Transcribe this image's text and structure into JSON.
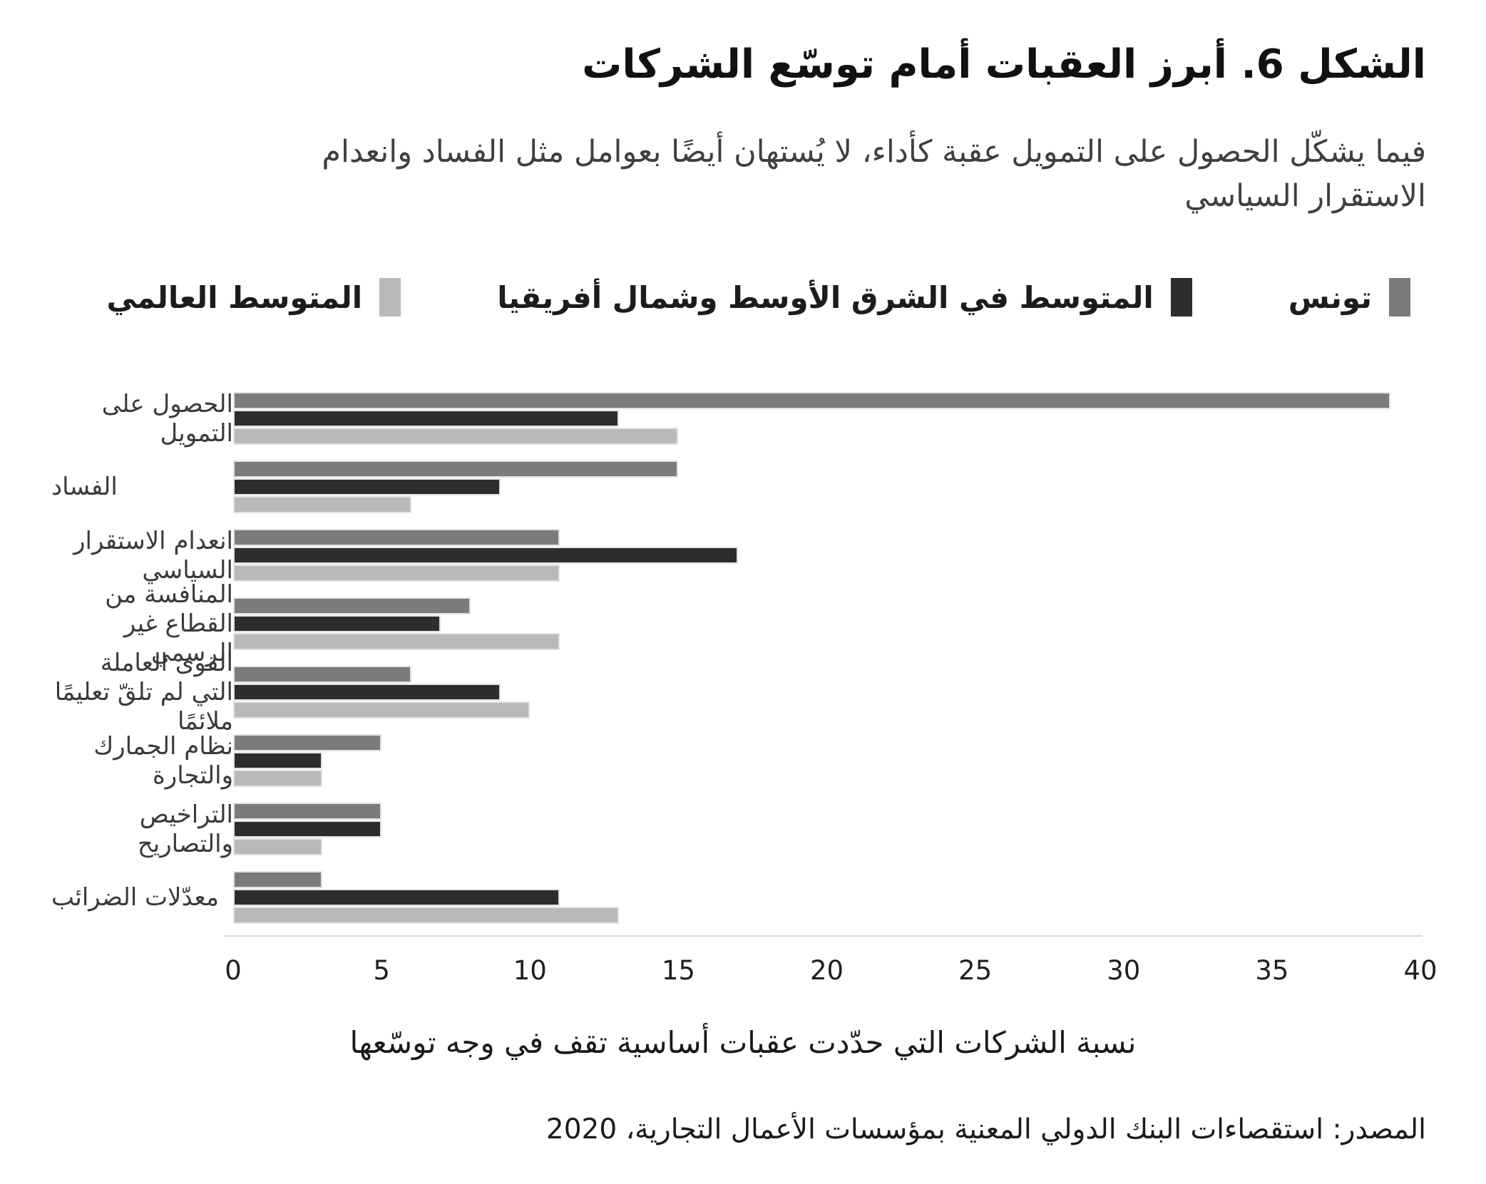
{
  "figure": {
    "title": "الشكل 6. أبرز العقبات أمام توسّع الشركات",
    "subtitle": "فيما يشكّل الحصول على التمويل عقبة كأداء، لا يُستهان أيضًا بعوامل مثل الفساد وانعدام الاستقرار السياسي",
    "xaxis_label": "نسبة الشركات التي حدّدت عقبات أساسية تقف في وجه توسّعها",
    "source": "المصدر: استقصاءات البنك الدولي المعنية بمؤسسات الأعمال التجارية، 2020"
  },
  "colors": {
    "tunisia": "#7b7b7b",
    "mena": "#2d2d2d",
    "world": "#b9b9b9",
    "bar_outline": "#e2e2e2",
    "axis_line": "#d9d9d9"
  },
  "legend": [
    {
      "label": "تونس",
      "color": "#7b7b7b"
    },
    {
      "label": "المتوسط في الشرق الأوسط وشمال أفريقيا",
      "color": "#2d2d2d"
    },
    {
      "label": "المتوسط العالمي",
      "color": "#b9b9b9"
    }
  ],
  "chart_data": {
    "type": "bar",
    "orientation": "horizontal",
    "title": "الشكل 6. أبرز العقبات أمام توسّع الشركات",
    "xlabel": "نسبة الشركات التي حدّدت عقبات أساسية تقف في وجه توسّعها",
    "xlim": [
      0,
      40
    ],
    "xticks": [
      "0",
      "5",
      "10",
      "15",
      "20",
      "25",
      "30",
      "35",
      "40"
    ],
    "grid": false,
    "legend_position": "top",
    "categories": [
      "الحصول على التمويل",
      "الفساد",
      "انعدام الاستقرار السياسي",
      "المنافسة من القطاع غير الرسمي",
      "القوى العاملة التي لم تلقّ تعليمًا ملائمًا",
      "نظام الجمارك والتجارة",
      "التراخيص والتصاريح",
      "معدّلات الضرائب"
    ],
    "series": [
      {
        "name": "تونس",
        "color": "#7b7b7b",
        "values": [
          39,
          15,
          11,
          8,
          6,
          5,
          5,
          3
        ]
      },
      {
        "name": "المتوسط في الشرق الأوسط وشمال أفريقيا",
        "color": "#2d2d2d",
        "values": [
          13,
          9,
          17,
          7,
          9,
          3,
          5,
          11
        ]
      },
      {
        "name": "المتوسط العالمي",
        "color": "#b9b9b9",
        "values": [
          15,
          6,
          11,
          11,
          10,
          3,
          3,
          13
        ]
      }
    ]
  }
}
